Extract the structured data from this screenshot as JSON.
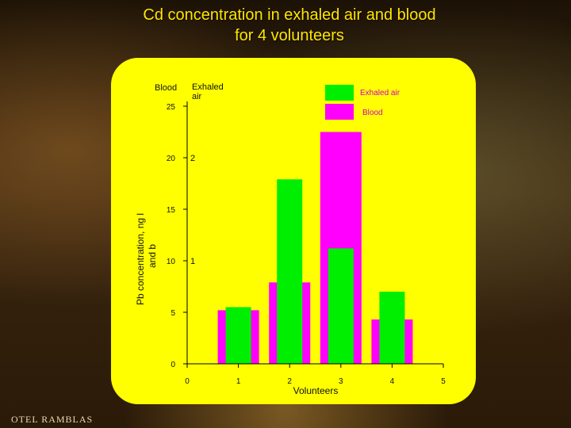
{
  "title_line1": "Cd concentration in exhaled air and blood",
  "title_line2": "for 4 volunteers",
  "background_sign": "OTEL RAMBLAS",
  "colors": {
    "exhaled_air": "#00ee00",
    "blood": "#ff00ff",
    "card": "#ffff00",
    "title": "#ffe600"
  },
  "chart_data": {
    "type": "bar",
    "xlabel": "Volunteers",
    "ylabel": "Pb concentration, ng l",
    "ylabel_line2": "and b",
    "axis_headers": {
      "left": "Blood",
      "right": "Exhaled",
      "right_line2": "air"
    },
    "x_ticks": [
      "0",
      "1",
      "2",
      "3",
      "4",
      "5"
    ],
    "y_ticks_blood": [
      "0",
      "5",
      "10",
      "15",
      "20",
      "25"
    ],
    "y_ticks_exhaled": [
      "1",
      "2"
    ],
    "xlim": [
      0,
      5
    ],
    "ylim": [
      0,
      25
    ],
    "categories": [
      "1",
      "2",
      "3",
      "4"
    ],
    "series": [
      {
        "name": "Exhaled air",
        "values": [
          5.5,
          17.9,
          11.2,
          7.0
        ]
      },
      {
        "name": "Blood",
        "values": [
          5.2,
          7.9,
          22.5,
          4.3
        ]
      }
    ],
    "legend_position": "top-right",
    "grid": false
  }
}
